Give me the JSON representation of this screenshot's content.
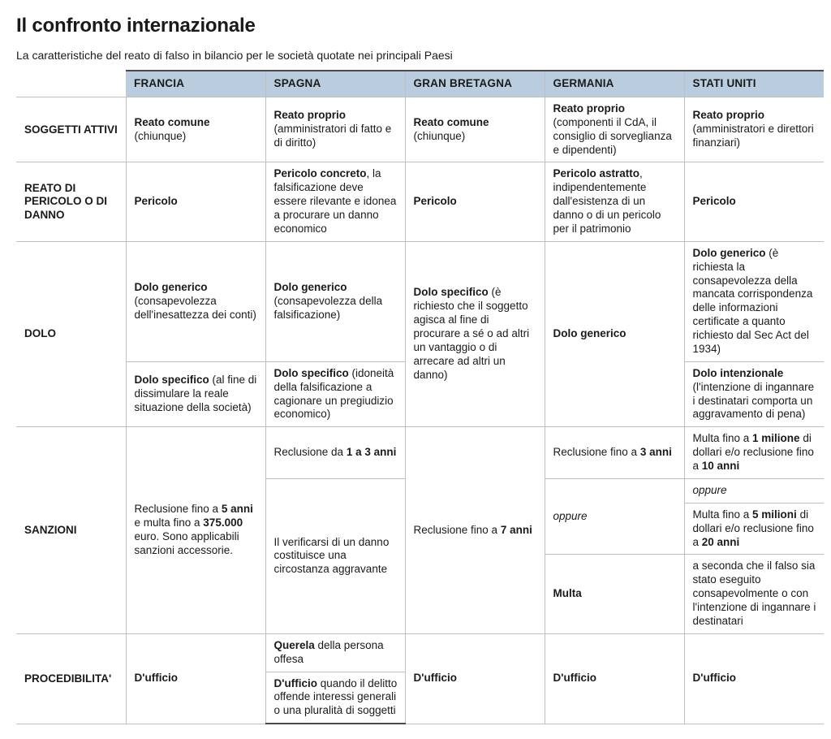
{
  "title": "Il confronto internazionale",
  "subtitle": "La caratteristiche del reato di falso in bilancio per le società quotate nei principali Paesi",
  "style": {
    "header_bg": "#b9cddf",
    "border_color": "#bfbfbf",
    "heavy_border": "#4a4a4a",
    "text_color": "#1a1a1a",
    "title_fontsize": 24,
    "body_fontsize": 13.5,
    "font_family": "Helvetica Neue, Helvetica, Arial, sans-serif"
  },
  "countries": [
    "FRANCIA",
    "SPAGNA",
    "GRAN BRETAGNA",
    "GERMANIA",
    "STATI UNITI"
  ],
  "row_labels": {
    "soggetti": "SOGGETTI ATTIVI",
    "reato": "REATO DI PERICOLO O DI DANNO",
    "dolo": "DOLO",
    "sanzioni": "SANZIONI",
    "proced": "PROCEDIBILITA'"
  },
  "soggetti": {
    "fr": {
      "b": "Reato comune",
      "r": " (chiunque)"
    },
    "es": {
      "b": "Reato proprio",
      "r": " (amministratori di fatto e di diritto)"
    },
    "gb": {
      "b": "Reato comune",
      "r": " (chiunque)"
    },
    "de": {
      "b": "Reato proprio",
      "r": " (componenti il CdA, il consiglio di sorveglianza e dipendenti)"
    },
    "us": {
      "b": "Reato proprio",
      "r": " (amministratori e direttori finanziari)"
    }
  },
  "reato": {
    "fr": {
      "b": "Pericolo",
      "r": ""
    },
    "es": {
      "b": "Pericolo concreto",
      "r": ", la falsificazione deve essere rilevante e idonea a procurare un danno economico"
    },
    "gb": {
      "b": "Pericolo",
      "r": ""
    },
    "de": {
      "b": "Pericolo astratto",
      "r": ", indipendentemente dall'esistenza di un danno o di un pericolo per il patrimonio"
    },
    "us": {
      "b": "Pericolo",
      "r": ""
    }
  },
  "dolo": {
    "fr1": {
      "b": "Dolo generico",
      "r": " (consapevolezza dell'inesattezza dei conti)"
    },
    "fr2": {
      "b": "Dolo specifico",
      "r": " (al fine di dissimulare la reale situazione della società)"
    },
    "es1": {
      "b": "Dolo generico",
      "r": " (consapevolezza della falsificazione)"
    },
    "es2": {
      "b": "Dolo specifico",
      "r": " (idoneità della falsificazione a cagionare un pregiudizio economico)"
    },
    "gb": {
      "b": "Dolo specifico",
      "r": " (è richiesto che il soggetto agisca al fine di procurare a sé o ad altri un vantaggio o di arrecare ad altri un danno)"
    },
    "de": {
      "b": "Dolo generico",
      "r": ""
    },
    "us1": {
      "b": "Dolo generico",
      "r": " (è richiesta la consapevolezza della mancata corrispondenza delle informazioni certificate a quanto richiesto dal Sec Act del 1934)"
    },
    "us2": {
      "b": "Dolo intenzionale",
      "r": " (l'intenzione di ingannare i destinatari comporta un aggravamento di pena)"
    }
  },
  "sanzioni": {
    "fr_pre": "Reclusione fino a ",
    "fr_b1": "5 anni",
    "fr_mid": " e multa fino a ",
    "fr_b2": "375.000",
    "fr_post": " euro. Sono applicabili sanzioni accessorie.",
    "es1_pre": "Reclusione da ",
    "es1_b": "1 a 3 anni",
    "es2": "Il verificarsi di un danno costituisce una circostanza aggravante",
    "gb_pre": "Reclusione fino a ",
    "gb_b": "7 anni",
    "de1_pre": "Reclusione fino a ",
    "de1_b": "3 anni",
    "de_oppure": "oppure",
    "de3_b": "Multa",
    "us1_pre": "Multa fino a ",
    "us1_b1": "1 milione",
    "us1_mid": " di dollari e/o reclusione fino a ",
    "us1_b2": "10 anni",
    "us_oppure": "oppure",
    "us3_pre": "Multa fino a ",
    "us3_b1": "5 milioni",
    "us3_mid": " di dollari e/o reclusione fino a ",
    "us3_b2": "20 anni",
    "us4": "a seconda che il falso sia stato eseguito consapevolmente o con l'intenzione di ingannare i destinatari"
  },
  "proced": {
    "fr": {
      "b": "D'ufficio",
      "r": ""
    },
    "es1": {
      "b": "Querela",
      "r": " della persona offesa"
    },
    "es2": {
      "b": "D'ufficio",
      "r": " quando il delitto offende interessi generali o una pluralità di soggetti"
    },
    "gb": {
      "b": "D'ufficio",
      "r": ""
    },
    "de": {
      "b": "D'ufficio",
      "r": ""
    },
    "us": {
      "b": "D'ufficio",
      "r": ""
    }
  }
}
